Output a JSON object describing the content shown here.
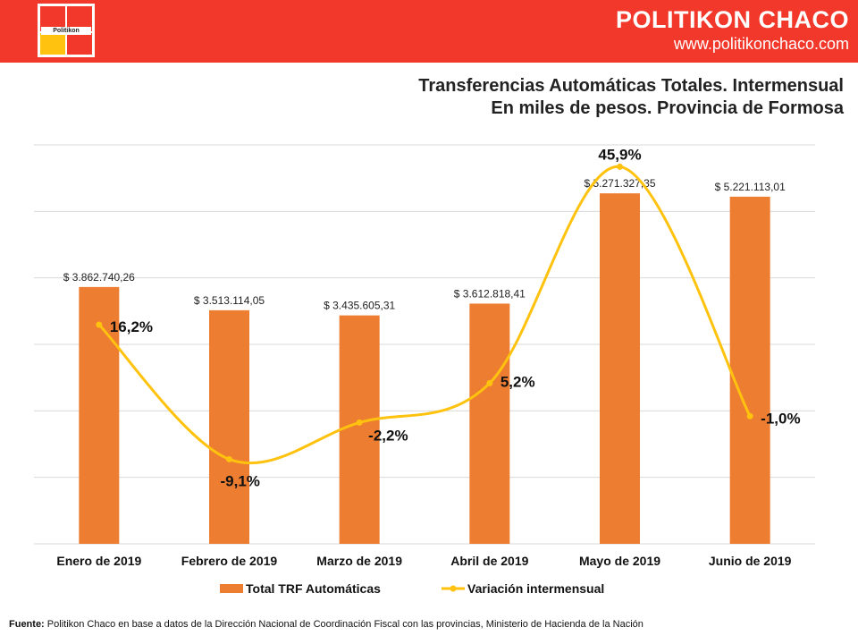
{
  "brand": {
    "name": "POLITIKON CHACO",
    "url": "www.politikonchaco.com",
    "logo_text": "Politikon"
  },
  "colors": {
    "header": "#f2382a",
    "bar": "#ed7d31",
    "line": "#ffc20e",
    "logo_yellow": "#ffc20e"
  },
  "source": {
    "label": "Fuente:",
    "text": " Politikon Chaco en base a datos de la Dirección Nacional de Coordinación Fiscal con las provincias, Ministerio de Hacienda de la Nación"
  },
  "chart_data": {
    "type": "bar",
    "title": "Transferencias Automáticas Totales. Intermensual",
    "subtitle": "En miles de pesos. Provincia de Formosa",
    "categories": [
      "Enero de 2019",
      "Febrero de 2019",
      "Marzo de 2019",
      "Abril de 2019",
      "Mayo de 2019",
      "Junio de 2019"
    ],
    "series": [
      {
        "name": "Total TRF Automáticas",
        "type": "bar",
        "values": [
          3862740.26,
          3513114.05,
          3435605.31,
          3612818.41,
          5271327.35,
          5221113.01
        ],
        "labels": [
          "$ 3.862.740,26",
          "$ 3.513.114,05",
          "$ 3.435.605,31",
          "$ 3.612.818,41",
          "$ 5.271.327,35",
          "$ 5.221.113,01"
        ]
      },
      {
        "name": "Variación intermensual",
        "type": "line",
        "smooth": true,
        "values": [
          16.2,
          -9.1,
          -2.2,
          5.2,
          45.9,
          -1.0
        ],
        "labels": [
          "16,2%",
          "-9,1%",
          "-2,2%",
          "5,2%",
          "45,9%",
          "-1,0%"
        ]
      }
    ],
    "ylim_bars": [
      0,
      6000000
    ],
    "ylim_line": [
      -25,
      50
    ],
    "grid": true,
    "legend": "bottom"
  }
}
